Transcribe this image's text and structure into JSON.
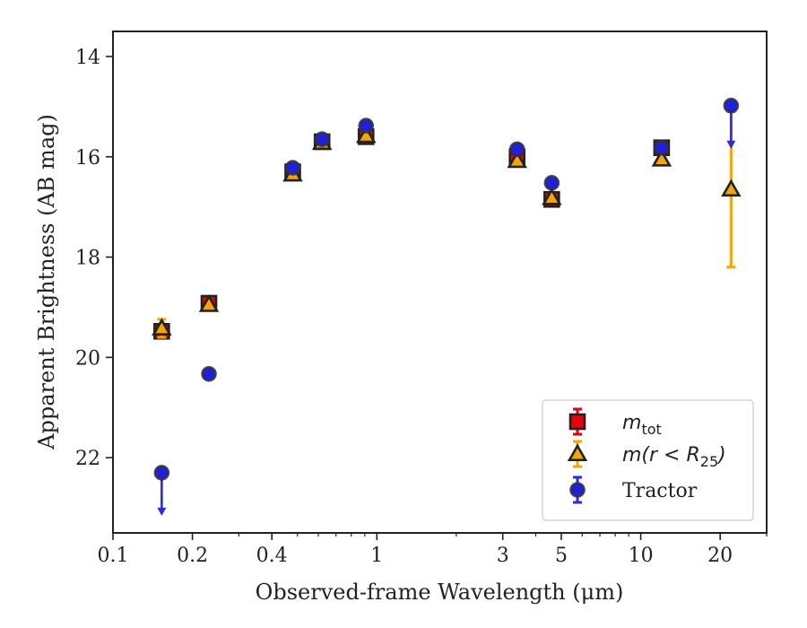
{
  "chart_data": {
    "type": "scatter",
    "xscale": "log",
    "yinverted": true,
    "xlim": [
      0.1,
      30
    ],
    "ylim": [
      23.5,
      13.5
    ],
    "xlabel": "Observed-frame Wavelength (μm)",
    "ylabel": "Apparent Brightness (AB mag)",
    "x_ticks": [
      0.1,
      0.2,
      0.4,
      1,
      3,
      5,
      10,
      20
    ],
    "x_tick_labels": [
      "0.1",
      "0.2",
      "0.4",
      "1",
      "3",
      "5",
      "10",
      "20"
    ],
    "y_ticks": [
      14,
      16,
      18,
      20,
      22
    ],
    "y_tick_labels": [
      "14",
      "16",
      "18",
      "20",
      "22"
    ],
    "legend_position": "lower-right",
    "legend": [
      {
        "key": "mtot",
        "label": "m",
        "sub": "tot"
      },
      {
        "key": "mr25",
        "label": "m(r < R",
        "sub": "25",
        "suffix": ")"
      },
      {
        "key": "tractor",
        "label": "Tractor"
      }
    ],
    "series": [
      {
        "key": "mtot",
        "marker": "square",
        "color": "#e8000b",
        "errcolor": "#e8000b",
        "points": [
          {
            "x": 0.153,
            "y": 19.48
          },
          {
            "x": 0.231,
            "y": 18.92
          },
          {
            "x": 0.48,
            "y": 16.3
          },
          {
            "x": 0.62,
            "y": 15.7
          },
          {
            "x": 0.91,
            "y": 15.6
          },
          {
            "x": 3.4,
            "y": 16.0
          },
          {
            "x": 4.6,
            "y": 16.85
          },
          {
            "x": 12.0,
            "y": 15.82
          }
        ]
      },
      {
        "key": "mr25",
        "marker": "triangle",
        "color": "#f5a500",
        "errcolor": "#f5a500",
        "points": [
          {
            "x": 0.153,
            "y": 19.42,
            "err": 0.18
          },
          {
            "x": 0.231,
            "y": 18.95
          },
          {
            "x": 0.48,
            "y": 16.35
          },
          {
            "x": 0.62,
            "y": 15.72
          },
          {
            "x": 0.91,
            "y": 15.58
          },
          {
            "x": 3.4,
            "y": 16.08
          },
          {
            "x": 4.6,
            "y": 16.82
          },
          {
            "x": 12.0,
            "y": 16.05
          },
          {
            "x": 22.0,
            "y": 16.65,
            "err": 1.55
          }
        ]
      },
      {
        "key": "tractor",
        "marker": "circle",
        "color": "#1f1fe0",
        "errcolor": "#2a2ae8",
        "points": [
          {
            "x": 0.153,
            "y": 22.3,
            "upper_limit": true
          },
          {
            "x": 0.231,
            "y": 20.33
          },
          {
            "x": 0.48,
            "y": 16.22
          },
          {
            "x": 0.62,
            "y": 15.65
          },
          {
            "x": 0.91,
            "y": 15.38
          },
          {
            "x": 3.4,
            "y": 15.85
          },
          {
            "x": 4.6,
            "y": 16.52
          },
          {
            "x": 12.0,
            "y": 15.82
          },
          {
            "x": 22.0,
            "y": 14.98,
            "upper_limit": true
          }
        ]
      }
    ]
  }
}
